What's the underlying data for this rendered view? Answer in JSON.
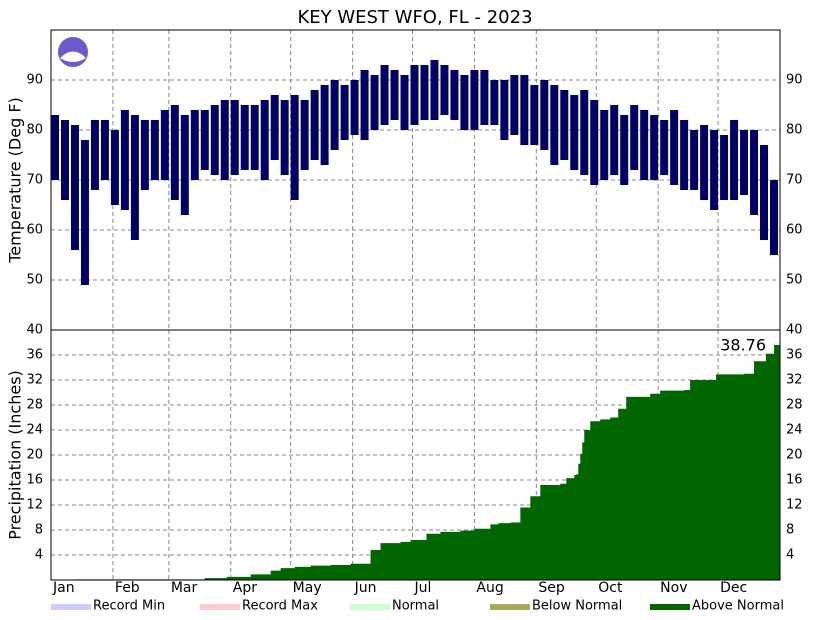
{
  "chart_data": [
    {
      "type": "range",
      "title": "KEY WEST WFO, FL - 2023",
      "y_label": "Temperature (Deg F)",
      "color": "#000066",
      "grid": true,
      "x": [
        2,
        7,
        12,
        17,
        22,
        27,
        32,
        37,
        42,
        47,
        52,
        57,
        62,
        67,
        72,
        77,
        82,
        87,
        92,
        97,
        102,
        107,
        112,
        117,
        122,
        127,
        132,
        137,
        142,
        147,
        152,
        157,
        162,
        167,
        172,
        177,
        182,
        187,
        192,
        197,
        202,
        207,
        212,
        217,
        222,
        227,
        232,
        237,
        242,
        247,
        252,
        257,
        262,
        267,
        272,
        277,
        282,
        287,
        292,
        297,
        302,
        307,
        312,
        317,
        322,
        327,
        332,
        337,
        342,
        347,
        352,
        357,
        362
      ],
      "high": [
        83,
        82,
        81,
        78,
        82,
        82,
        80,
        84,
        83,
        82,
        82,
        84,
        85,
        83,
        84,
        84,
        85,
        86,
        86,
        85,
        85,
        86,
        87,
        86,
        87,
        86,
        88,
        89,
        90,
        89,
        90,
        92,
        91,
        93,
        92,
        91,
        93,
        93,
        94,
        93,
        92,
        91,
        92,
        92,
        90,
        90,
        91,
        91,
        89,
        90,
        89,
        88,
        87,
        88,
        86,
        84,
        85,
        83,
        85,
        84,
        83,
        82,
        84,
        82,
        80,
        81,
        80,
        79,
        82,
        80,
        80,
        77,
        70
      ],
      "low": [
        70,
        66,
        56,
        49,
        68,
        70,
        65,
        64,
        58,
        68,
        70,
        70,
        66,
        63,
        70,
        72,
        71,
        70,
        71,
        72,
        72,
        70,
        74,
        71,
        66,
        72,
        74,
        73,
        76,
        78,
        79,
        78,
        80,
        81,
        82,
        80,
        81,
        82,
        82,
        83,
        82,
        80,
        80,
        81,
        81,
        78,
        79,
        77,
        77,
        76,
        73,
        74,
        72,
        71,
        69,
        70,
        71,
        69,
        72,
        70,
        70,
        71,
        69,
        68,
        68,
        66,
        64,
        66,
        66,
        67,
        63,
        58,
        55
      ],
      "xlim": [
        0,
        365
      ],
      "ylim": [
        40,
        100
      ],
      "yticks": [
        50,
        60,
        70,
        80,
        90
      ],
      "xticks": [
        {
          "value": 0,
          "label": "Jan"
        },
        {
          "value": 31,
          "label": "Feb"
        },
        {
          "value": 59,
          "label": "Mar"
        },
        {
          "value": 90,
          "label": "Apr"
        },
        {
          "value": 120,
          "label": "May"
        },
        {
          "value": 151,
          "label": "Jun"
        },
        {
          "value": 181,
          "label": "Jul"
        },
        {
          "value": 212,
          "label": "Aug"
        },
        {
          "value": 243,
          "label": "Sep"
        },
        {
          "value": 273,
          "label": "Oct"
        },
        {
          "value": 304,
          "label": "Nov"
        },
        {
          "value": 334,
          "label": "Dec"
        }
      ]
    },
    {
      "type": "step",
      "y_label": "Precipitation (Inches)",
      "color": "#006600",
      "grid": true,
      "annotation": "38.76",
      "x": [
        0,
        12,
        77,
        88,
        100,
        110,
        115,
        122,
        130,
        140,
        150,
        160,
        165,
        175,
        180,
        188,
        195,
        205,
        212,
        220,
        224,
        230,
        235,
        240,
        245,
        255,
        258,
        262,
        263,
        264,
        265,
        266,
        267,
        270,
        275,
        280,
        284,
        288,
        300,
        305,
        317,
        320,
        333,
        347,
        352,
        358,
        362
      ],
      "values": [
        0.05,
        0.1,
        0.3,
        0.5,
        0.9,
        1.5,
        1.9,
        2.1,
        2.3,
        2.4,
        2.6,
        4.8,
        5.9,
        6.1,
        6.4,
        7.4,
        7.7,
        7.9,
        8.2,
        8.9,
        9.1,
        9.2,
        11.6,
        13.4,
        15.2,
        15.4,
        16.3,
        16.8,
        16.9,
        18.6,
        20.2,
        22.0,
        24.0,
        25.4,
        25.7,
        26.0,
        27.4,
        29.3,
        29.8,
        30.3,
        30.4,
        32.0,
        32.9,
        33.0,
        35.0,
        36.2,
        37.6
      ],
      "xlim": [
        0,
        365
      ],
      "ylim": [
        0,
        40
      ],
      "yticks": [
        4,
        8,
        12,
        16,
        20,
        24,
        28,
        32,
        36,
        40
      ],
      "legend": [
        {
          "name": "Record Min",
          "color": "#ccccff"
        },
        {
          "name": "Record Max",
          "color": "#ffcccc"
        },
        {
          "name": "Normal",
          "color": "#ccffcc"
        },
        {
          "name": "Below Normal",
          "color": "#aaaa55"
        },
        {
          "name": "Above Normal",
          "color": "#006600"
        }
      ]
    }
  ]
}
